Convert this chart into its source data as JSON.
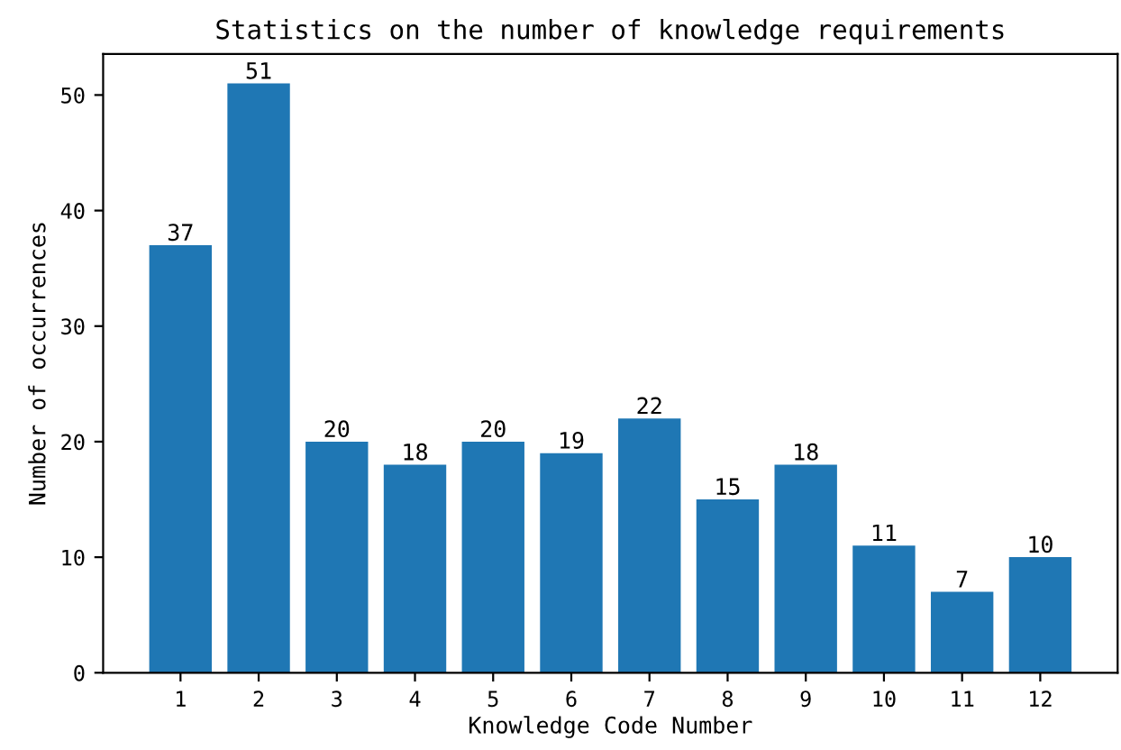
{
  "chart_data": {
    "type": "bar",
    "title": "Statistics on the number of knowledge requirements",
    "xlabel": "Knowledge Code Number",
    "ylabel": "Number of occurrences",
    "categories": [
      "1",
      "2",
      "3",
      "4",
      "5",
      "6",
      "7",
      "8",
      "9",
      "10",
      "11",
      "12"
    ],
    "values": [
      37,
      51,
      20,
      18,
      20,
      19,
      22,
      15,
      18,
      11,
      7,
      10
    ],
    "color": "#1f77b4",
    "ylim": [
      0,
      53.55
    ],
    "yticks": [
      0,
      10,
      20,
      30,
      40,
      50
    ],
    "data_labels": true,
    "grid": false
  }
}
